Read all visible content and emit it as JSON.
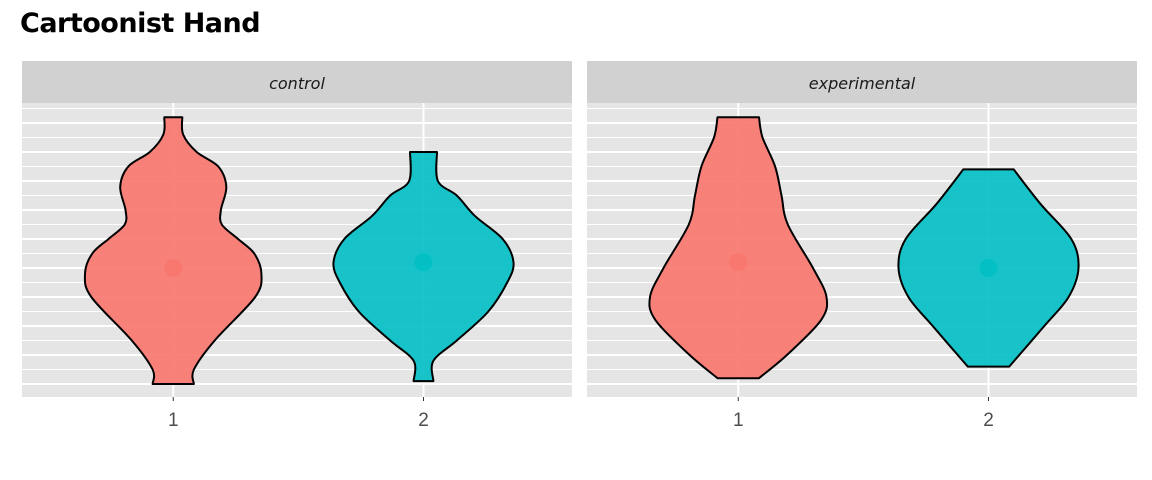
{
  "title": "Cartoonist Hand",
  "colors": {
    "panel_bg": "#e5e5e5",
    "strip_bg": "#d1d1d1",
    "grid": "#ffffff",
    "group_1": "#F8766D",
    "group_2": "#00BFC4"
  },
  "chart_data": {
    "type": "violin",
    "facets": [
      "control",
      "experimental"
    ],
    "x_categories": [
      "1",
      "2"
    ],
    "axis_ticks_shown": false,
    "grid": true,
    "ylim": [
      0,
      10
    ],
    "series": [
      {
        "facet": "control",
        "group": "1",
        "mean": 4.0,
        "range": [
          0.0,
          9.2
        ],
        "profile": [
          [
            0.0,
            0.23
          ],
          [
            0.5,
            0.23
          ],
          [
            1.5,
            0.46
          ],
          [
            3.0,
            0.91
          ],
          [
            3.8,
            0.98
          ],
          [
            4.5,
            0.9
          ],
          [
            5.0,
            0.72
          ],
          [
            5.5,
            0.54
          ],
          [
            6.0,
            0.53
          ],
          [
            6.8,
            0.59
          ],
          [
            7.5,
            0.5
          ],
          [
            8.0,
            0.26
          ],
          [
            8.6,
            0.11
          ],
          [
            9.2,
            0.1
          ]
        ]
      },
      {
        "facet": "control",
        "group": "2",
        "mean": 4.2,
        "range": [
          0.1,
          8.0
        ],
        "profile": [
          [
            0.1,
            0.11
          ],
          [
            0.8,
            0.11
          ],
          [
            1.5,
            0.37
          ],
          [
            2.5,
            0.72
          ],
          [
            3.5,
            0.93
          ],
          [
            4.2,
            1.0
          ],
          [
            5.0,
            0.88
          ],
          [
            5.8,
            0.57
          ],
          [
            6.5,
            0.37
          ],
          [
            7.0,
            0.16
          ],
          [
            8.0,
            0.15
          ]
        ]
      },
      {
        "facet": "experimental",
        "group": "1",
        "mean": 4.2,
        "range": [
          0.2,
          9.2
        ],
        "profile": [
          [
            0.2,
            0.23
          ],
          [
            1.0,
            0.54
          ],
          [
            2.2,
            0.92
          ],
          [
            3.0,
            0.98
          ],
          [
            4.0,
            0.83
          ],
          [
            5.5,
            0.55
          ],
          [
            6.5,
            0.48
          ],
          [
            7.5,
            0.41
          ],
          [
            8.5,
            0.27
          ],
          [
            9.2,
            0.23
          ]
        ]
      },
      {
        "facet": "experimental",
        "group": "2",
        "mean": 4.0,
        "range": [
          0.6,
          7.4
        ],
        "profile": [
          [
            0.6,
            0.23
          ],
          [
            2.0,
            0.62
          ],
          [
            3.0,
            0.89
          ],
          [
            4.0,
            1.0
          ],
          [
            5.0,
            0.92
          ],
          [
            6.2,
            0.58
          ],
          [
            7.4,
            0.28
          ]
        ]
      }
    ]
  }
}
